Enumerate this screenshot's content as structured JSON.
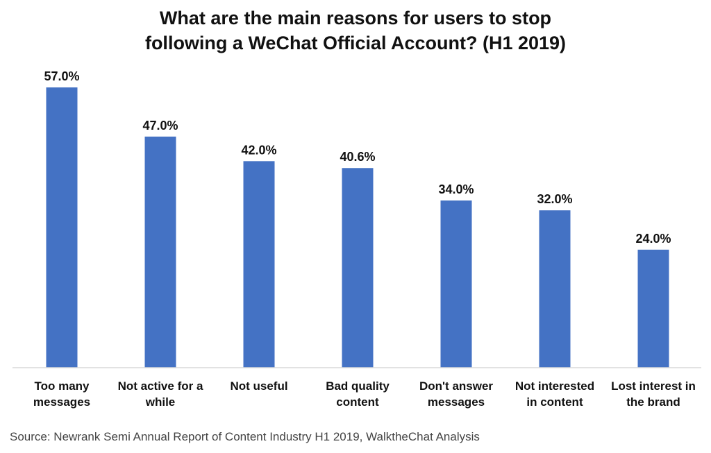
{
  "colors": {
    "bar": "#4472C4",
    "axis": "#D9D9D9",
    "text": "#111111",
    "source": "#444444"
  },
  "chart_data": {
    "type": "bar",
    "title_lines": [
      "What are the main reasons for users to stop",
      "following a WeChat Official Account? (H1 2019)"
    ],
    "categories": [
      [
        "Too many",
        "messages"
      ],
      [
        "Not active for a",
        "while"
      ],
      [
        "Not useful"
      ],
      [
        "Bad quality",
        "content"
      ],
      [
        "Don't answer",
        "messages"
      ],
      [
        "Not interested",
        "in content"
      ],
      [
        "Lost interest in",
        "the brand"
      ]
    ],
    "values": [
      57.0,
      47.0,
      42.0,
      40.6,
      34.0,
      32.0,
      24.0
    ],
    "data_labels": [
      "57.0%",
      "47.0%",
      "42.0%",
      "40.6%",
      "34.0%",
      "32.0%",
      "24.0%"
    ],
    "ylim": [
      0,
      57.0
    ],
    "grid": false,
    "legend": "none",
    "source": "Source: Newrank Semi Annual Report of Content Industry H1 2019, WalktheChat Analysis"
  }
}
